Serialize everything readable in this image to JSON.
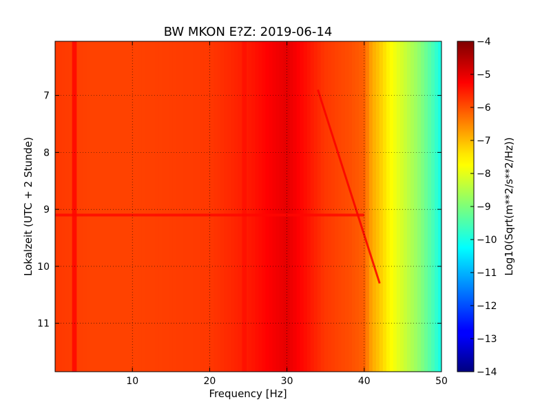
{
  "chart_data": {
    "type": "heatmap",
    "title": "BW MKON E?Z: 2019-06-14",
    "xlabel": "Frequency [Hz]",
    "ylabel": "Lokalzeit (UTC + 2 Stunde)",
    "xlim": [
      0,
      50
    ],
    "ylim": [
      11.85,
      6.05
    ],
    "y_inverted": true,
    "xticks": [
      10,
      20,
      30,
      40,
      50
    ],
    "xtick_labels": [
      "10",
      "20",
      "30",
      "40",
      "50"
    ],
    "yticks": [
      7,
      8,
      9,
      10,
      11
    ],
    "ytick_labels": [
      "7",
      "8",
      "9",
      "10",
      "11"
    ],
    "grid": true,
    "grid_style": "dotted",
    "colormap": "jet",
    "colorbar": {
      "label": "Log10(Sqrt(m**2/s**2/Hz))",
      "range": [
        -14,
        -4
      ],
      "ticks": [
        -4,
        -5,
        -6,
        -7,
        -8,
        -9,
        -10,
        -11,
        -12,
        -13,
        -14
      ],
      "tick_labels": [
        "−4",
        "−5",
        "−6",
        "−7",
        "−8",
        "−9",
        "−10",
        "−11",
        "−12",
        "−13",
        "−14"
      ]
    },
    "spectral_profile": {
      "frequency_hz": [
        0,
        5,
        10,
        20,
        25,
        30,
        35,
        38,
        40,
        41,
        42,
        43,
        44,
        45,
        46,
        47,
        48,
        49,
        50
      ],
      "log10_amplitude": [
        -5.8,
        -5.9,
        -5.9,
        -5.8,
        -5.5,
        -5.0,
        -5.8,
        -6.0,
        -6.2,
        -6.9,
        -7.2,
        -7.6,
        -7.9,
        -8.2,
        -8.5,
        -8.8,
        -9.2,
        -9.6,
        -10.1
      ]
    },
    "features": [
      {
        "type": "vertical_band",
        "frequency_hz": 30,
        "log10_amplitude": -5.0
      },
      {
        "type": "vertical_band",
        "frequency_hz": 2.5,
        "log10_amplitude": -5.3
      },
      {
        "type": "vertical_band",
        "frequency_hz": 24.5,
        "log10_amplitude": -5.4
      },
      {
        "type": "gliding_line",
        "time_start": 6.9,
        "time_end": 10.3,
        "freq_start": 34,
        "freq_end": 42,
        "log10_amplitude": -5.2
      },
      {
        "type": "horizontal_band",
        "time": 9.1,
        "log10_amplitude": -5.3
      }
    ]
  }
}
